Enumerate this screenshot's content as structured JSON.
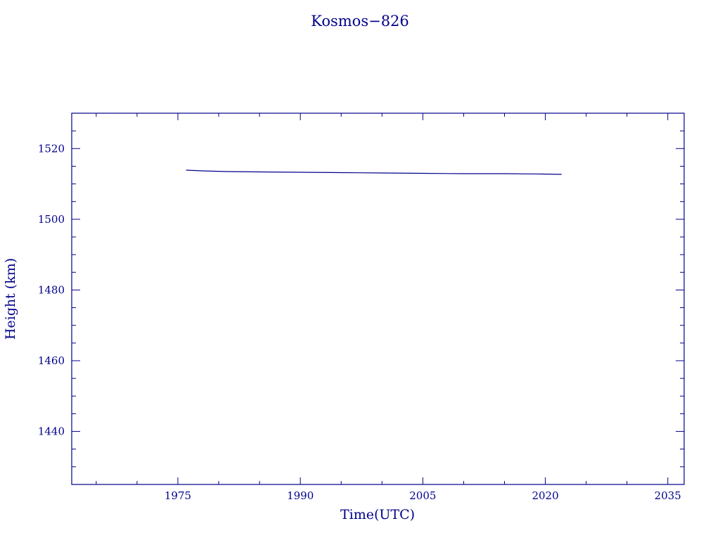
{
  "chart_data": {
    "type": "line",
    "title": "Kosmos−826",
    "xlabel": "Time(UTC)",
    "ylabel": "Height (km)",
    "xlim": [
      1962,
      2037
    ],
    "ylim": [
      1425,
      1530
    ],
    "x_ticks": [
      1975,
      1990,
      2005,
      2020,
      2035
    ],
    "x_tick_labels": [
      "1975",
      "1990",
      "2005",
      "2020",
      "2035"
    ],
    "y_ticks": [
      1440,
      1460,
      1480,
      1500,
      1520
    ],
    "y_tick_labels": [
      "1440",
      "1460",
      "1480",
      "1500",
      "1520"
    ],
    "grid": false,
    "legend": "none",
    "color": "#00008b",
    "series": [
      {
        "x": [
          1976.0,
          1978.0,
          1981.0,
          1985.0,
          1990.0,
          1995.0,
          2000.0,
          2005.0,
          2010.0,
          2015.0,
          2019.5,
          2022.0
        ],
        "y": [
          1513.9,
          1513.7,
          1513.5,
          1513.4,
          1513.3,
          1513.2,
          1513.1,
          1513.0,
          1512.9,
          1512.9,
          1512.8,
          1512.7
        ]
      }
    ]
  }
}
